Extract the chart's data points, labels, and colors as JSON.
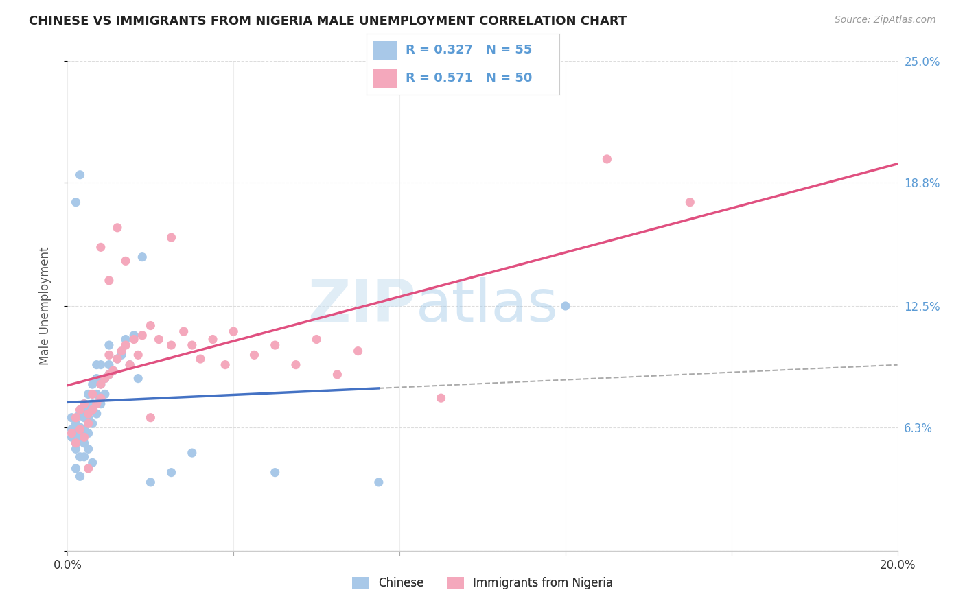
{
  "title": "CHINESE VS IMMIGRANTS FROM NIGERIA MALE UNEMPLOYMENT CORRELATION CHART",
  "source": "Source: ZipAtlas.com",
  "ylabel": "Male Unemployment",
  "xlim": [
    0.0,
    0.2
  ],
  "ylim": [
    0.0,
    0.25
  ],
  "xtick_positions": [
    0.0,
    0.04,
    0.08,
    0.12,
    0.16,
    0.2
  ],
  "xticklabels": [
    "0.0%",
    "",
    "",
    "",
    "",
    "20.0%"
  ],
  "ytick_positions": [
    0.0,
    0.063,
    0.125,
    0.188,
    0.25
  ],
  "ytick_labels": [
    "",
    "6.3%",
    "12.5%",
    "18.8%",
    "25.0%"
  ],
  "watermark_zip": "ZIP",
  "watermark_atlas": "atlas",
  "legend_line1": "R = 0.327   N = 55",
  "legend_line2": "R = 0.571   N = 50",
  "chinese_color": "#a8c8e8",
  "nigeria_color": "#f4a8bc",
  "chinese_line_color": "#4472c4",
  "nigeria_line_color": "#e05080",
  "dashed_line_color": "#aaaaaa",
  "background_color": "#ffffff",
  "grid_color": "#dddddd",
  "right_tick_color": "#5b9bd5",
  "chinese_x": [
    0.001,
    0.001,
    0.001,
    0.002,
    0.002,
    0.002,
    0.002,
    0.003,
    0.003,
    0.003,
    0.003,
    0.004,
    0.004,
    0.004,
    0.004,
    0.005,
    0.005,
    0.005,
    0.005,
    0.006,
    0.006,
    0.006,
    0.007,
    0.007,
    0.007,
    0.007,
    0.008,
    0.008,
    0.008,
    0.009,
    0.009,
    0.01,
    0.01,
    0.01,
    0.011,
    0.012,
    0.013,
    0.014,
    0.015,
    0.016,
    0.017,
    0.018,
    0.002,
    0.003,
    0.025,
    0.03,
    0.05,
    0.075,
    0.004,
    0.005,
    0.006,
    0.02,
    0.002,
    0.003,
    0.12
  ],
  "chinese_y": [
    0.058,
    0.062,
    0.068,
    0.052,
    0.06,
    0.055,
    0.065,
    0.048,
    0.058,
    0.063,
    0.07,
    0.055,
    0.062,
    0.068,
    0.075,
    0.06,
    0.068,
    0.072,
    0.08,
    0.065,
    0.075,
    0.085,
    0.07,
    0.08,
    0.088,
    0.095,
    0.075,
    0.085,
    0.095,
    0.08,
    0.088,
    0.09,
    0.095,
    0.105,
    0.092,
    0.098,
    0.1,
    0.108,
    0.095,
    0.11,
    0.088,
    0.15,
    0.042,
    0.038,
    0.04,
    0.05,
    0.04,
    0.035,
    0.048,
    0.052,
    0.045,
    0.035,
    0.178,
    0.192,
    0.125
  ],
  "nigeria_x": [
    0.001,
    0.002,
    0.002,
    0.003,
    0.003,
    0.004,
    0.004,
    0.005,
    0.005,
    0.006,
    0.006,
    0.007,
    0.008,
    0.008,
    0.009,
    0.01,
    0.01,
    0.011,
    0.012,
    0.013,
    0.014,
    0.015,
    0.016,
    0.017,
    0.018,
    0.02,
    0.022,
    0.025,
    0.028,
    0.03,
    0.032,
    0.035,
    0.038,
    0.04,
    0.045,
    0.05,
    0.055,
    0.06,
    0.065,
    0.07,
    0.008,
    0.01,
    0.012,
    0.014,
    0.02,
    0.09,
    0.13,
    0.15,
    0.005,
    0.025
  ],
  "nigeria_y": [
    0.06,
    0.055,
    0.068,
    0.062,
    0.072,
    0.058,
    0.075,
    0.065,
    0.07,
    0.072,
    0.08,
    0.075,
    0.085,
    0.078,
    0.088,
    0.09,
    0.1,
    0.092,
    0.098,
    0.102,
    0.105,
    0.095,
    0.108,
    0.1,
    0.11,
    0.115,
    0.108,
    0.105,
    0.112,
    0.105,
    0.098,
    0.108,
    0.095,
    0.112,
    0.1,
    0.105,
    0.095,
    0.108,
    0.09,
    0.102,
    0.155,
    0.138,
    0.165,
    0.148,
    0.068,
    0.078,
    0.2,
    0.178,
    0.042,
    0.16
  ]
}
